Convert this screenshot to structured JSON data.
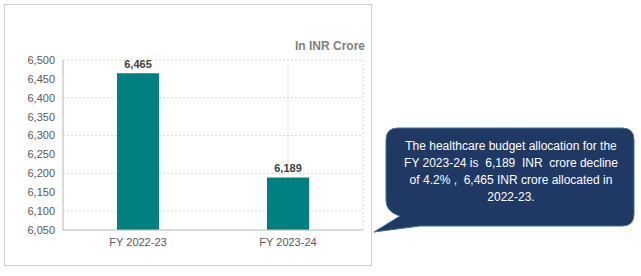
{
  "chart_data": {
    "type": "bar",
    "title": "In INR Crore",
    "categories": [
      "FY 2022-23",
      "FY 2023-24"
    ],
    "values": [
      6465,
      6189
    ],
    "value_labels": [
      "6,465",
      "6,189"
    ],
    "data_labels": true,
    "color": "#008080",
    "ylim": [
      6050,
      6500
    ],
    "yticks": [
      {
        "value": 6050,
        "label": "6,050"
      },
      {
        "value": 6100,
        "label": "6,100"
      },
      {
        "value": 6150,
        "label": "6,150"
      },
      {
        "value": 6200,
        "label": "6,200"
      },
      {
        "value": 6250,
        "label": "6,250"
      },
      {
        "value": 6300,
        "label": "6,300"
      },
      {
        "value": 6350,
        "label": "6,350"
      },
      {
        "value": 6400,
        "label": "6,400"
      },
      {
        "value": 6450,
        "label": "6,450"
      },
      {
        "value": 6500,
        "label": "6,500"
      }
    ],
    "grid": true,
    "annotation": "The healthcare budget allocation for the FY 2023-24 is  6,189  INR  crore decline of 4.2% ,  6,465 INR crore allocated in 2022-23."
  }
}
